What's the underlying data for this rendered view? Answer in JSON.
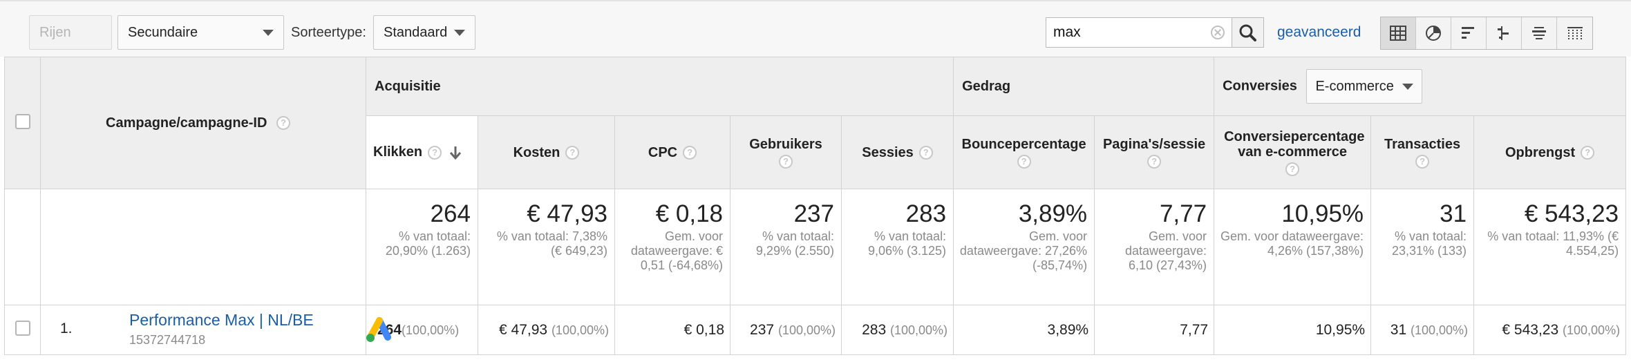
{
  "toolbar": {
    "rows_button": "Rijen tonen",
    "secondary_dimension": "Secundaire dimensie",
    "sort_type_label": "Sorteertype:",
    "sort_type_value": "Standaard",
    "search_value": "max",
    "advanced_link": "geavanceerd",
    "view_icons": [
      "table-view-icon",
      "pie-view-icon",
      "performance-view-icon",
      "comparison-view-icon",
      "term-cloud-view-icon",
      "pivot-view-icon"
    ]
  },
  "table": {
    "dimension_header": "Campagne/campagne-ID",
    "groups": {
      "acquisition": "Acquisitie",
      "behavior": "Gedrag",
      "conversions": "Conversies",
      "conversion_type": "E-commerce"
    },
    "columns": {
      "clicks": "Klikken",
      "costs": "Kosten",
      "cpc": "CPC",
      "users": "Gebruikers",
      "sessions": "Sessies",
      "bounce": "Bouncepercentage",
      "pages": "Pagina's/sessie",
      "conv_rate": "Conversiepercentage van e-commerce",
      "transactions": "Transacties",
      "revenue": "Opbrengst"
    },
    "totals": {
      "clicks": {
        "value": "264",
        "sub": "% van totaal: 20,90% (1.263)"
      },
      "costs": {
        "value": "€ 47,93",
        "sub": "% van totaal: 7,38% (€ 649,23)"
      },
      "cpc": {
        "value": "€ 0,18",
        "sub": "Gem. voor dataweergave: € 0,51 (-64,68%)"
      },
      "users": {
        "value": "237",
        "sub": "% van totaal: 9,29% (2.550)"
      },
      "sessions": {
        "value": "283",
        "sub": "% van totaal: 9,06% (3.125)"
      },
      "bounce": {
        "value": "3,89%",
        "sub": "Gem. voor dataweergave: 27,26% (-85,74%)"
      },
      "pages": {
        "value": "7,77",
        "sub": "Gem. voor dataweergave: 6,10 (27,43%)"
      },
      "conv_rate": {
        "value": "10,95%",
        "sub": "Gem. voor dataweergave: 4,26% (157,38%)"
      },
      "transactions": {
        "value": "31",
        "sub": "% van totaal: 23,31% (133)"
      },
      "revenue": {
        "value": "€ 543,23",
        "sub": "% van totaal: 11,93% (€ 4.554,25)"
      }
    },
    "rows": [
      {
        "index": "1.",
        "campaign": "Performance Max | NL/BE",
        "campaign_id": "15372744718",
        "clicks": "264",
        "clicks_pct": "(100,00%)",
        "costs": "€ 47,93",
        "costs_pct": "(100,00%)",
        "cpc": "€ 0,18",
        "users": "237",
        "users_pct": "(100,00%)",
        "sessions": "283",
        "sessions_pct": "(100,00%)",
        "bounce": "3,89%",
        "pages": "7,77",
        "conv_rate": "10,95%",
        "transactions": "31",
        "transactions_pct": "(100,00%)",
        "revenue": "€ 543,23",
        "revenue_pct": "(100,00%)"
      }
    ]
  }
}
